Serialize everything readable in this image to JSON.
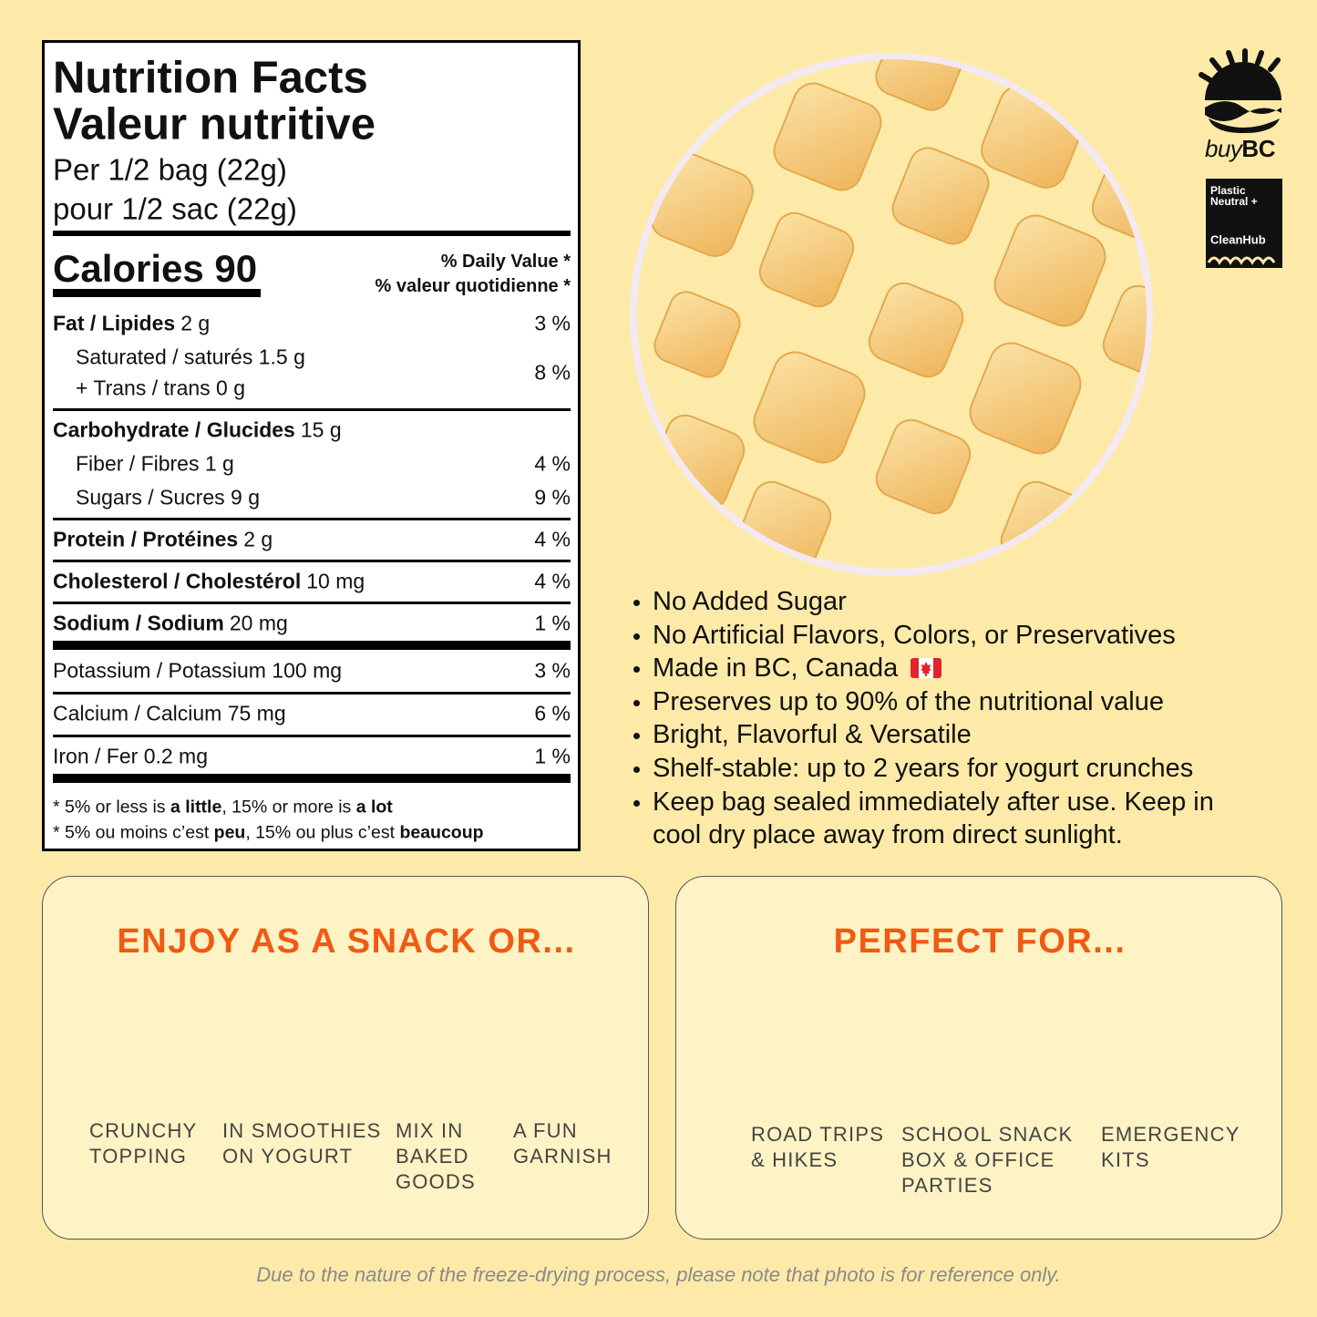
{
  "nutrition": {
    "title": [
      "Nutrition Facts",
      "Valeur nutritive"
    ],
    "serving": [
      "Per 1/2 bag (22g)",
      "pour 1/2 sac (22g)"
    ],
    "calories": "Calories 90",
    "daily_value": [
      "% Daily Value *",
      "% valeur quotidienne *"
    ],
    "sections": [
      {
        "name": "Fat / Lipides",
        "amount": "2 g",
        "dv": "3 %",
        "sub": [
          {
            "lines": [
              "Saturated / saturés 1.5 g",
              "+ Trans / trans 0 g"
            ],
            "dv": "8 %"
          }
        ]
      },
      {
        "name": "Carbohydrate / Glucides",
        "amount": "15 g",
        "sub": [
          {
            "lines": [
              "Fiber / Fibres 1 g"
            ],
            "dv": "4 %"
          },
          {
            "lines": [
              "Sugars / Sucres 9 g"
            ],
            "dv": "9 %"
          }
        ]
      },
      {
        "name": "Protein / Protéines",
        "amount": "2 g",
        "dv": "4 %"
      },
      {
        "name": "Cholesterol / Cholestérol",
        "amount": "10 mg",
        "dv": "4 %"
      },
      {
        "name": "Sodium / Sodium",
        "amount": "20 mg",
        "dv": "1 %"
      }
    ],
    "minerals": [
      {
        "text": "Potassium / Potassium 100 mg",
        "dv": "3 %"
      },
      {
        "text": "Calcium / Calcium 75 mg",
        "dv": "6 %"
      },
      {
        "text": "Iron / Fer 0.2 mg",
        "dv": "1 %"
      }
    ],
    "footnotes": [
      [
        {
          "text": "* 5% or less is ",
          "bold": false
        },
        {
          "text": "a little",
          "bold": true
        },
        {
          "text": ", 15% or more is ",
          "bold": false
        },
        {
          "text": "a lot",
          "bold": true
        }
      ],
      [
        {
          "text": "* 5% ou moins c’est ",
          "bold": false
        },
        {
          "text": "peu",
          "bold": true
        },
        {
          "text": ", 15% ou plus c’est ",
          "bold": false
        },
        {
          "text": "beaucoup",
          "bold": true
        }
      ]
    ]
  },
  "logos": {
    "buybc": [
      "buy",
      "BC"
    ],
    "badge": [
      "Plastic",
      "Neutral +",
      "CleanHub"
    ]
  },
  "bullets": [
    "No Added Sugar",
    "No Artificial Flavors, Colors, or Preservatives",
    "Made in BC, Canada",
    "Preserves up to 90% of the nutritional value",
    "Bright, Flavorful & Versatile",
    "Shelf-stable: up to 2 years for yogurt crunches",
    "Keep bag sealed immediately after use. Keep in cool dry place away from direct sunlight."
  ],
  "panels": [
    {
      "title": "ENJOY AS A SNACK OR...",
      "items": [
        [
          "CRUNCHY",
          "TOPPING"
        ],
        [
          "IN SMOOTHIES",
          "ON YOGURT"
        ],
        [
          "MIX IN",
          "BAKED",
          "GOODS"
        ],
        [
          "A FUN",
          "GARNISH"
        ]
      ]
    },
    {
      "title": "PERFECT FOR...",
      "items": [
        [
          "ROAD TRIPS",
          "& HIKES"
        ],
        [
          "SCHOOL SNACK",
          "BOX & OFFICE",
          "PARTIES"
        ],
        [
          "EMERGENCY",
          "KITS"
        ]
      ]
    }
  ],
  "disclaimer": "Due to the nature of the freeze-drying process, please note that photo is for reference only."
}
